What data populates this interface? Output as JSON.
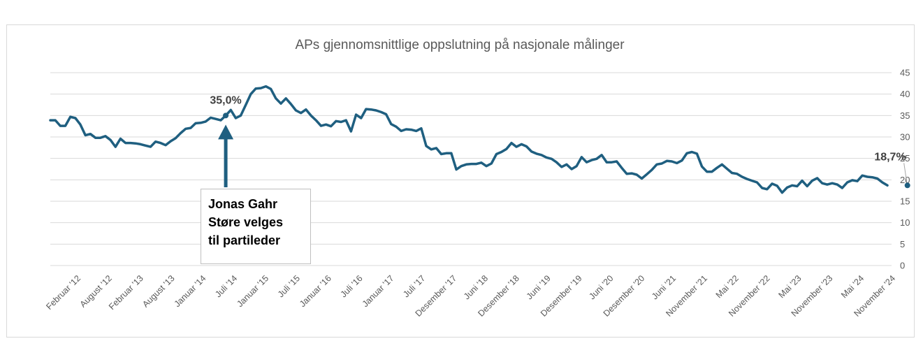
{
  "chart_data": {
    "type": "line",
    "title": "APs gjennomsnittlige oppslutning på nasjonale målinger",
    "xlabel": "",
    "ylabel": "",
    "ylim": [
      0,
      45
    ],
    "yticks": [
      0,
      5,
      10,
      15,
      20,
      25,
      30,
      35,
      40,
      45
    ],
    "grid": true,
    "x_tick_labels": [
      "Februar '12",
      "August '12",
      "Februar '13",
      "August '13",
      "Januar '14",
      "Juli '14",
      "Januar '15",
      "Juli '15",
      "Januar '16",
      "Juli '16",
      "Januar '17",
      "Juli '17",
      "Desember '17",
      "Juni '18",
      "Desember '18",
      "Juni '19",
      "Desember '19",
      "Juni '20",
      "Desember '20",
      "Juni '21",
      "November '21",
      "Mai '22",
      "November '22",
      "Mai '23",
      "November '23",
      "Mai '24",
      "November '24"
    ],
    "series": [
      {
        "color": "#1f5f80",
        "values": [
          33.9,
          33.9,
          32.6,
          32.6,
          34.7,
          34.4,
          32.9,
          30.4,
          30.7,
          29.8,
          29.8,
          30.2,
          29.3,
          27.7,
          29.6,
          28.6,
          28.6,
          28.5,
          28.3,
          28.0,
          27.7,
          28.9,
          28.6,
          28.1,
          29.0,
          29.7,
          30.9,
          31.9,
          32.1,
          33.2,
          33.3,
          33.6,
          34.5,
          34.2,
          33.9,
          35.0,
          36.3,
          34.4,
          35.0,
          37.5,
          40.0,
          41.3,
          41.4,
          41.8,
          41.2,
          39.0,
          37.8,
          39.0,
          37.7,
          36.2,
          35.6,
          36.4,
          35.0,
          33.9,
          32.6,
          32.9,
          32.5,
          33.7,
          33.5,
          33.9,
          31.3,
          35.2,
          34.4,
          36.5,
          36.4,
          36.2,
          35.8,
          35.3,
          33.0,
          32.4,
          31.4,
          31.8,
          31.7,
          31.4,
          32.0,
          27.9,
          27.1,
          27.4,
          26.0,
          26.2,
          26.2,
          22.4,
          23.2,
          23.6,
          23.7,
          23.7,
          24.0,
          23.2,
          23.8,
          26.0,
          26.5,
          27.2,
          28.6,
          27.7,
          28.3,
          27.8,
          26.6,
          26.1,
          25.8,
          25.2,
          24.9,
          24.1,
          23.0,
          23.6,
          22.5,
          23.2,
          25.3,
          24.1,
          24.6,
          24.9,
          25.8,
          24.1,
          24.1,
          24.3,
          22.8,
          21.4,
          21.5,
          21.2,
          20.3,
          21.3,
          22.3,
          23.6,
          23.8,
          24.4,
          24.3,
          23.9,
          24.5,
          26.2,
          26.5,
          26.1,
          23.1,
          21.9,
          21.9,
          22.8,
          23.6,
          22.6,
          21.6,
          21.4,
          20.7,
          20.2,
          19.8,
          19.4,
          18.1,
          17.8,
          19.1,
          18.6,
          17.0,
          18.2,
          18.7,
          18.5,
          19.8,
          18.5,
          19.8,
          20.4,
          19.2,
          18.9,
          19.2,
          18.9,
          18.1,
          19.4,
          19.9,
          19.7,
          21.0,
          20.7,
          20.6,
          20.3,
          19.4,
          18.7
        ]
      }
    ],
    "data_labels": [
      {
        "text": "35,0%",
        "value": 35.0,
        "index": 35
      },
      {
        "text": "18,7%",
        "value": 18.7,
        "index": 171
      }
    ],
    "annotation": {
      "text": "Jonas Gahr\nStøre velges\ntil partileder",
      "index": 35
    }
  }
}
